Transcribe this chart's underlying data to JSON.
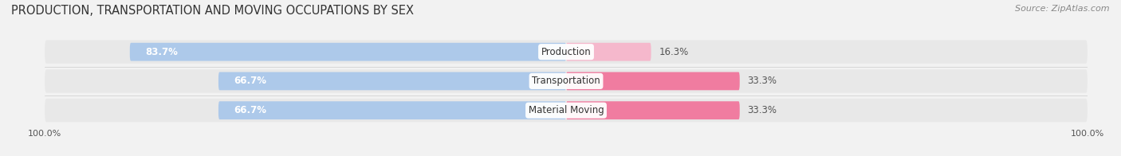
{
  "title": "PRODUCTION, TRANSPORTATION AND MOVING OCCUPATIONS BY SEX",
  "source": "Source: ZipAtlas.com",
  "categories": [
    "Production",
    "Transportation",
    "Material Moving"
  ],
  "male_values": [
    83.7,
    66.7,
    66.7
  ],
  "female_values": [
    16.3,
    33.3,
    33.3
  ],
  "male_color": "#adc9ea",
  "female_color": "#f07ca0",
  "female_color_light": "#f5b8cc",
  "bar_height": 0.62,
  "row_bg_color": "#e8e8e8",
  "background_color": "#f2f2f2",
  "bar_background_color": "#e8e8e8",
  "title_fontsize": 10.5,
  "source_fontsize": 8,
  "label_fontsize": 8.5,
  "legend_fontsize": 9,
  "axis_label_fontsize": 8
}
